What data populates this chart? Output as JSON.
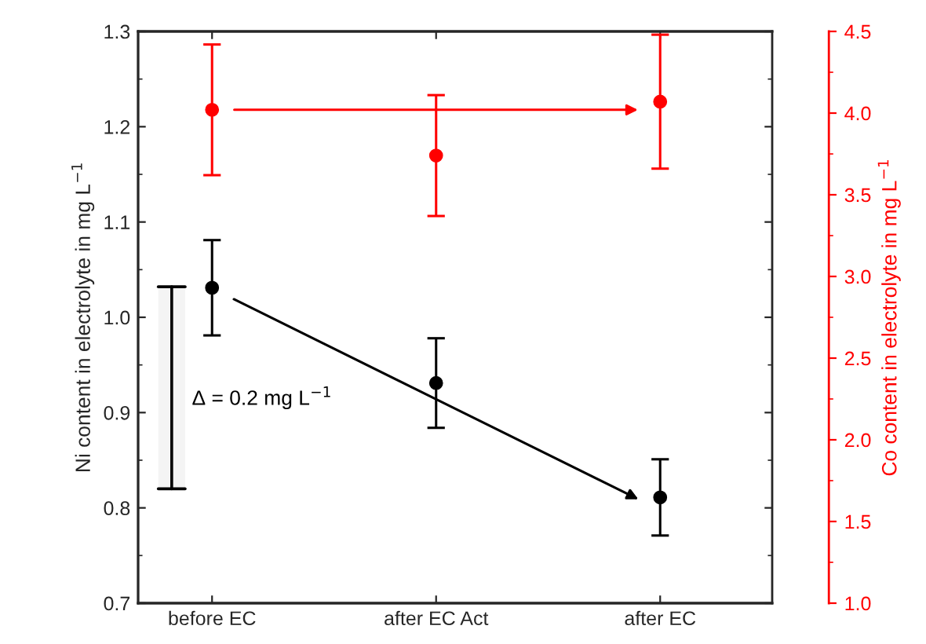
{
  "chart_data": {
    "type": "scatter",
    "categories": [
      "before EC",
      "after EC Act",
      "after EC"
    ],
    "ylabel": "Ni content in electrolyte in mg L$^{−1}$",
    "y2label": "Co content in electrolyte in mg L$^{−1}$",
    "series": [
      {
        "color": "#000000",
        "values": [
          1.031,
          0.931,
          0.811
        ],
        "errors": [
          0.05,
          0.047,
          0.04
        ]
      },
      {
        "color": "#ff0000",
        "axis": "y2",
        "values": [
          4.02,
          3.74,
          4.07
        ],
        "errors": [
          0.4,
          0.37,
          0.41
        ]
      }
    ],
    "ylim": [
      0.7,
      1.3
    ],
    "yticks": [
      0.7,
      0.8,
      0.9,
      {
        "value": 1.0,
        "label": "1.0"
      },
      1.1,
      1.2,
      1.3
    ],
    "y2lim": [
      1.0,
      4.5
    ],
    "y2ticks": [
      {
        "value": 1.0,
        "label": "1.0"
      },
      1.5,
      {
        "value": 2.0,
        "label": "2.0"
      },
      2.5,
      {
        "value": 3.0,
        "label": "3.0"
      },
      3.5,
      {
        "value": 4.0,
        "label": "4.0"
      },
      4.5
    ],
    "bands": [
      {
        "axis": "y",
        "from": 0.82,
        "to": 1.032,
        "label": "Δ = 0.2 mg L$^{−1}$"
      }
    ],
    "marker": "circle",
    "grid": false,
    "legend": false
  }
}
